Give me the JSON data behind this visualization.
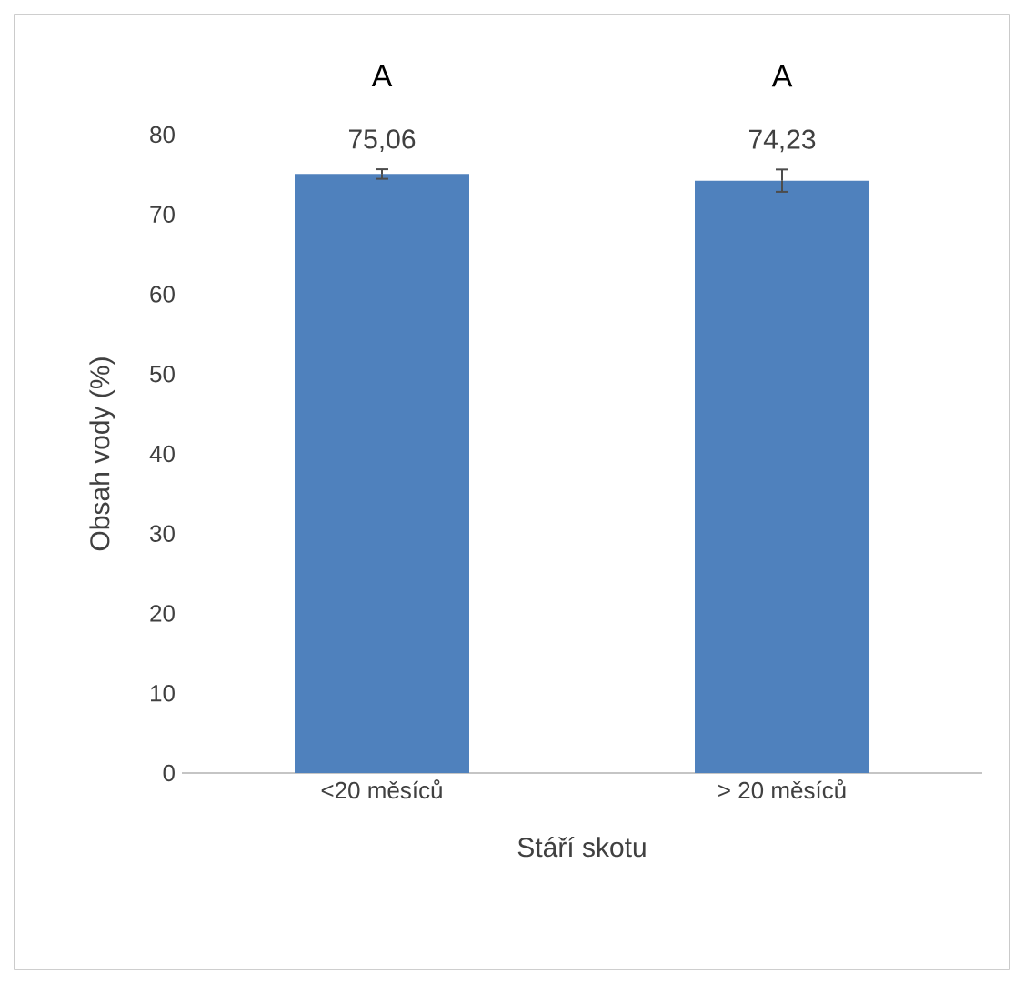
{
  "chart_data": {
    "type": "bar",
    "xlabel": "Stáří skotu",
    "ylabel": "Obsah vody (%)",
    "categories": [
      "<20 měsíců",
      "> 20 měsíců"
    ],
    "values": [
      75.06,
      74.23
    ],
    "color": "#4f81bd",
    "errors": [
      0.6,
      1.4
    ],
    "value_labels": [
      "75,06",
      "74,23"
    ],
    "annotations": [
      "A",
      "A"
    ],
    "ylim": [
      0,
      80
    ],
    "yticks": [
      0,
      10,
      20,
      30,
      40,
      50,
      60,
      70,
      80
    ]
  }
}
